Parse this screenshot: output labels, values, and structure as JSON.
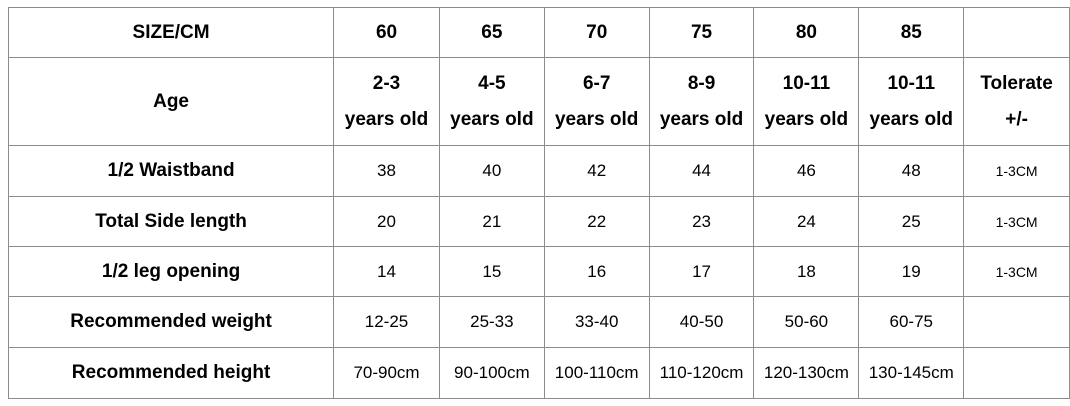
{
  "table": {
    "rows": [
      [
        "SIZE/CM",
        "60",
        "65",
        "70",
        "75",
        "80",
        "85"
      ],
      [
        "Age",
        [
          "2-3",
          "years old"
        ],
        [
          "4-5",
          "years old"
        ],
        [
          "6-7",
          "years old"
        ],
        [
          "8-9",
          "years old"
        ],
        [
          "10-11",
          "years old"
        ],
        [
          "10-11",
          "years old"
        ],
        [
          "Tolerate",
          "+/-"
        ]
      ],
      [
        "1/2 Waistband",
        "38",
        "40",
        "42",
        "44",
        "46",
        "48",
        "1-3CM"
      ],
      [
        "Total Side length",
        "20",
        "21",
        "22",
        "23",
        "24",
        "25",
        "1-3CM"
      ],
      [
        "1/2 leg opening",
        "14",
        "15",
        "16",
        "17",
        "18",
        "19",
        "1-3CM"
      ],
      [
        "Recommended weight",
        "12-25",
        "25-33",
        "33-40",
        "40-50",
        "50-60",
        "60-75"
      ],
      [
        "Recommended height",
        "70-90cm",
        "90-100cm",
        "100-110cm",
        "110-120cm",
        "120-130cm",
        "130-145cm"
      ]
    ]
  }
}
